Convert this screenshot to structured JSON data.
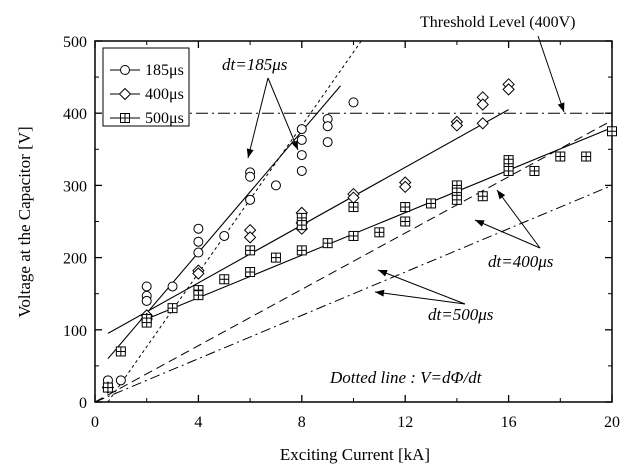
{
  "chart_data": {
    "type": "scatter",
    "xlabel": "Exciting Current [kA]",
    "ylabel": "Voltage at the Capacitor [V]",
    "xlim": [
      0,
      20
    ],
    "ylim": [
      0,
      500
    ],
    "x_ticks": [
      0,
      4,
      8,
      12,
      16,
      20
    ],
    "y_ticks": [
      0,
      100,
      200,
      300,
      400,
      500
    ],
    "x_ticks_minor": [
      2,
      6,
      10,
      14,
      18
    ],
    "y_ticks_minor": [
      50,
      150,
      250,
      350,
      450
    ],
    "grid": false,
    "legend_position": "top-left",
    "series": [
      {
        "name": "185μs",
        "marker": "circle",
        "points": [
          [
            0.5,
            30
          ],
          [
            1,
            30
          ],
          [
            2,
            160
          ],
          [
            2,
            147
          ],
          [
            2,
            140
          ],
          [
            3,
            160
          ],
          [
            4,
            240
          ],
          [
            4,
            222
          ],
          [
            4,
            207
          ],
          [
            4,
            180
          ],
          [
            5,
            230
          ],
          [
            6,
            318
          ],
          [
            6,
            312
          ],
          [
            6,
            280
          ],
          [
            7,
            300
          ],
          [
            8,
            378
          ],
          [
            8,
            363
          ],
          [
            8,
            342
          ],
          [
            8,
            320
          ],
          [
            9,
            392
          ],
          [
            9,
            382
          ],
          [
            9,
            360
          ],
          [
            10,
            415
          ]
        ],
        "fit": [
          [
            0.5,
            60
          ],
          [
            9.5,
            438
          ]
        ],
        "theory": [
          [
            0.5,
            0
          ],
          [
            10.3,
            500
          ]
        ]
      },
      {
        "name": "400μs",
        "marker": "diamond",
        "points": [
          [
            0.5,
            20
          ],
          [
            2,
            120
          ],
          [
            2,
            115
          ],
          [
            4,
            182
          ],
          [
            4,
            178
          ],
          [
            6,
            238
          ],
          [
            6,
            228
          ],
          [
            8,
            262
          ],
          [
            8,
            248
          ],
          [
            8,
            240
          ],
          [
            10,
            288
          ],
          [
            10,
            283
          ],
          [
            12,
            304
          ],
          [
            12,
            298
          ],
          [
            14,
            388
          ],
          [
            14,
            383
          ],
          [
            15,
            422
          ],
          [
            15,
            412
          ],
          [
            15,
            386
          ],
          [
            16,
            440
          ],
          [
            16,
            433
          ]
        ],
        "fit": [
          [
            0.5,
            95
          ],
          [
            16,
            405
          ]
        ],
        "theory": [
          [
            0,
            0
          ],
          [
            20,
            390
          ]
        ]
      },
      {
        "name": "500μs",
        "marker": "square-cross",
        "points": [
          [
            0.5,
            20
          ],
          [
            1,
            70
          ],
          [
            2,
            115
          ],
          [
            2,
            110
          ],
          [
            3,
            130
          ],
          [
            4,
            155
          ],
          [
            4,
            148
          ],
          [
            5,
            170
          ],
          [
            6,
            210
          ],
          [
            6,
            180
          ],
          [
            7,
            200
          ],
          [
            8,
            255
          ],
          [
            8,
            245
          ],
          [
            8,
            210
          ],
          [
            9,
            220
          ],
          [
            10,
            270
          ],
          [
            10,
            230
          ],
          [
            11,
            235
          ],
          [
            12,
            270
          ],
          [
            12,
            250
          ],
          [
            13,
            275
          ],
          [
            14,
            300
          ],
          [
            14,
            290
          ],
          [
            14,
            280
          ],
          [
            15,
            285
          ],
          [
            16,
            335
          ],
          [
            16,
            330
          ],
          [
            16,
            320
          ],
          [
            17,
            320
          ],
          [
            18,
            340
          ],
          [
            19,
            340
          ],
          [
            20,
            375
          ]
        ],
        "fit": [
          [
            2,
            115
          ],
          [
            20,
            380
          ]
        ],
        "theory": [
          [
            0,
            0
          ],
          [
            20,
            300
          ]
        ]
      }
    ],
    "threshold": {
      "value": 400,
      "label": "Threshold Level (400V)"
    },
    "annotations": {
      "dt185": "dt=185μs",
      "dt400": "dt=400μs",
      "dt500": "dt=500μs",
      "dotted_prefix": "Dotted line : ",
      "dotted_formula": "V=dΦ/dt"
    }
  }
}
